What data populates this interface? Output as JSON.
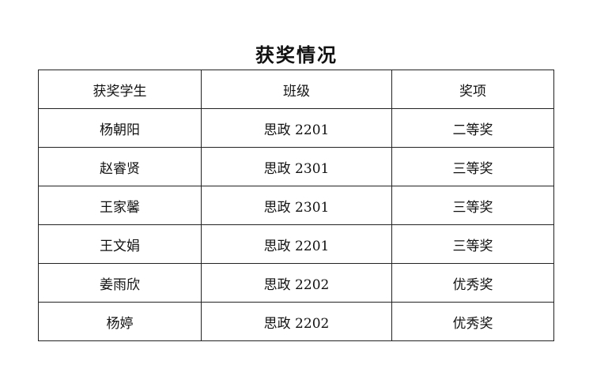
{
  "title": "获奖情况",
  "headers": [
    "获奖学生",
    "班级",
    "奖项"
  ],
  "rows": [
    [
      "杨朝阳",
      "思政 2201",
      "二等奖"
    ],
    [
      "赵睿贤",
      "思政 2301",
      "三等奖"
    ],
    [
      "王家馨",
      "思政 2301",
      "三等奖"
    ],
    [
      "王文娟",
      "思政 2201",
      "三等奖"
    ],
    [
      "姜雨欣",
      "思政 2202",
      "优秀奖"
    ],
    [
      "杨婷",
      "思政 2202",
      "优秀奖"
    ]
  ]
}
